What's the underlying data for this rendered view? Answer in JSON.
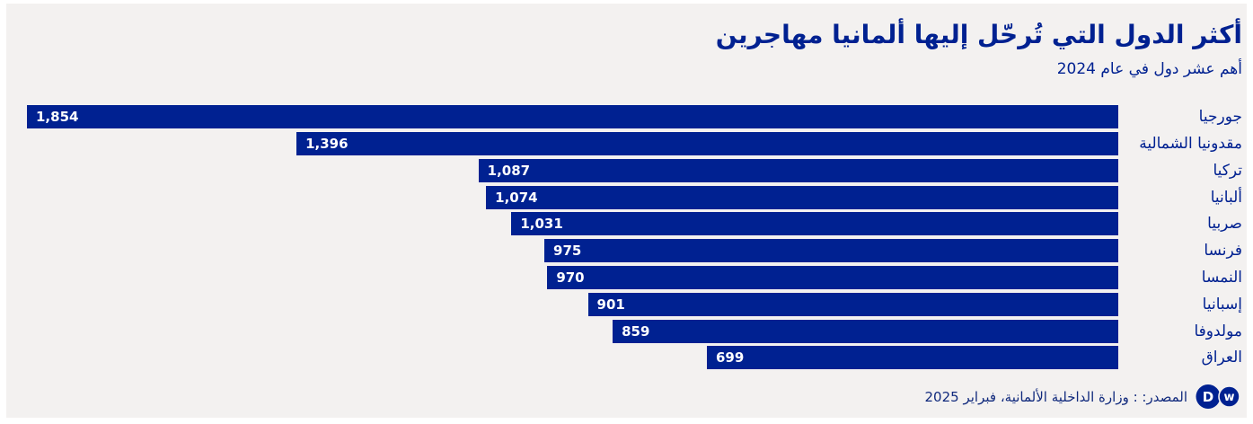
{
  "colors": {
    "bar": "#002191",
    "card_background": "#F3F1F0",
    "page_background": "#FFFFFF",
    "value_text": "#FFFFFF",
    "label_text": "#002191"
  },
  "chart_data": {
    "type": "bar",
    "orientation": "horizontal",
    "direction": "rtl",
    "title": "أكثر الدول التي تُرحّل إليها ألمانيا مهاجرين",
    "subtitle": "أهم عشر دول في عام 2024",
    "categories": [
      "جورجيا",
      "مقدونيا الشمالية",
      "تركيا",
      "ألبانيا",
      "صربيا",
      "فرنسا",
      "النمسا",
      "إسبانيا",
      "مولدوفا",
      "العراق"
    ],
    "values": [
      1854,
      1396,
      1087,
      1074,
      1031,
      975,
      970,
      901,
      859,
      699
    ],
    "value_labels": [
      "1,854",
      "1,396",
      "1,087",
      "1,074",
      "1,031",
      "975",
      "970",
      "901",
      "859",
      "699"
    ],
    "xlim": [
      0,
      1854
    ],
    "value_label_position": "inside-far-end",
    "grid": false,
    "legend": "none",
    "source": "المصدر: : وزارة الداخلية الألمانية، فبراير 2025"
  },
  "footer": {
    "logo_icon": "dw-logo",
    "logo_letters": [
      "D",
      "w"
    ]
  }
}
